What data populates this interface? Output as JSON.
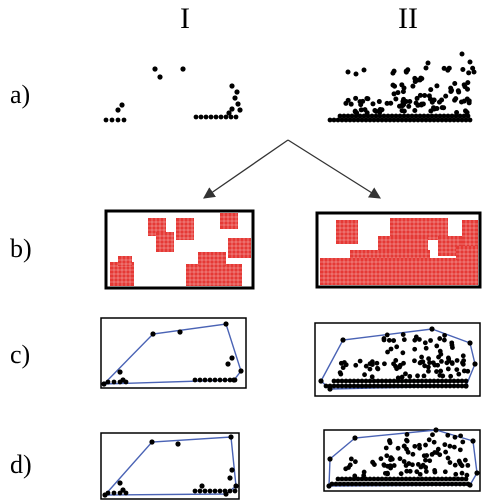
{
  "figure": {
    "columns": [
      {
        "id": "col1",
        "label": "I"
      },
      {
        "id": "col2",
        "label": "II"
      }
    ],
    "rows": [
      {
        "id": "row-a",
        "label": "a)"
      },
      {
        "id": "row-b",
        "label": "b)"
      },
      {
        "id": "row-c",
        "label": "c)"
      },
      {
        "id": "row-d",
        "label": "d)"
      }
    ]
  },
  "colors": {
    "point": "#000000",
    "cell_fill": "#e53935",
    "cell_grid": "#ffffff",
    "hull": "#4a63b5",
    "frame": "#000000",
    "arrow": "#333333"
  }
}
